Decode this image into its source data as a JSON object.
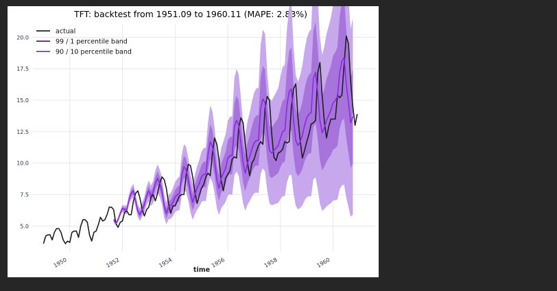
{
  "chart_data": {
    "type": "line",
    "title": "TFT: backtest from 1951.09 to 1960.11  (MAPE: 2.83%)",
    "xlabel": "time",
    "ylabel": "",
    "xlim": [
      1948.6,
      1961.6
    ],
    "ylim": [
      3.0,
      21.0
    ],
    "x_ticks": [
      1950,
      1952,
      1954,
      1956,
      1958,
      1960
    ],
    "y_ticks": [
      5.0,
      7.5,
      10.0,
      12.5,
      15.0,
      17.5,
      20.0
    ],
    "grid": true,
    "legend_position": "top-left",
    "colors": {
      "actual": "#1f1f1f",
      "band_99_1": "#5a1a7a",
      "band_90_10": "#8a2be2",
      "band_fill_outer": "#c7a8ec",
      "band_fill_inner": "#a774dc"
    },
    "series": [
      {
        "name": "actual",
        "x_start": 1949.0,
        "step": 0.083333,
        "values": [
          3.6,
          4.2,
          4.3,
          4.3,
          3.9,
          4.5,
          4.8,
          4.8,
          4.5,
          3.9,
          3.6,
          3.8,
          3.7,
          4.5,
          4.6,
          4.6,
          4.1,
          5.0,
          5.5,
          5.5,
          5.3,
          4.3,
          3.8,
          4.5,
          4.6,
          5.1,
          5.7,
          5.4,
          5.5,
          5.9,
          6.5,
          6.5,
          6.3,
          5.2,
          4.9,
          5.3,
          5.4,
          6.1,
          6.2,
          5.9,
          5.9,
          7.0,
          7.6,
          7.8,
          7.2,
          6.3,
          5.8,
          6.3,
          6.5,
          7.3,
          7.5,
          7.0,
          7.6,
          8.4,
          8.9,
          8.7,
          8.0,
          6.8,
          6.0,
          6.6,
          6.6,
          7.0,
          7.4,
          7.5,
          7.5,
          9.0,
          9.9,
          9.8,
          8.9,
          7.7,
          6.8,
          7.4,
          8.0,
          8.3,
          8.9,
          9.2,
          9.0,
          10.8,
          12.0,
          11.5,
          10.3,
          8.6,
          7.8,
          8.8,
          9.1,
          9.4,
          10.3,
          10.5,
          10.4,
          12.8,
          13.6,
          13.2,
          11.5,
          10.0,
          9.0,
          10.0,
          10.3,
          10.9,
          11.4,
          11.7,
          11.5,
          14.4,
          15.3,
          15.0,
          12.4,
          10.5,
          10.2,
          10.8,
          10.9,
          11.1,
          11.7,
          11.6,
          11.7,
          14.5,
          15.9,
          16.3,
          13.6,
          11.8,
          10.4,
          11.0,
          11.7,
          12.3,
          13.1,
          13.2,
          13.4,
          17.2,
          18.0,
          15.4,
          13.3,
          12.0,
          12.9,
          13.5,
          13.5,
          13.5,
          15.4,
          15.2,
          15.4,
          17.8,
          20.1,
          19.5,
          16.5,
          14.5,
          13.0,
          13.9
        ]
      },
      {
        "name": "99 / 1 percentile band",
        "x_start": 1951.667,
        "step": 0.083333,
        "median": [
          5.5,
          5.2,
          5.5,
          6.0,
          6.4,
          6.3,
          6.3,
          7.1,
          7.6,
          7.8,
          7.0,
          6.2,
          5.9,
          6.3,
          6.7,
          7.4,
          7.8,
          7.4,
          7.7,
          8.4,
          8.8,
          8.4,
          7.8,
          6.6,
          6.0,
          6.5,
          6.6,
          6.9,
          7.3,
          7.5,
          7.6,
          9.0,
          9.7,
          9.5,
          8.7,
          7.6,
          6.9,
          7.5,
          8.0,
          8.4,
          8.9,
          9.1,
          9.1,
          10.7,
          11.7,
          11.3,
          10.2,
          8.7,
          8.0,
          8.8,
          9.2,
          9.6,
          10.4,
          10.6,
          10.6,
          12.9,
          13.4,
          13.0,
          11.5,
          10.0,
          9.2,
          10.0,
          10.5,
          11.1,
          11.6,
          11.8,
          11.8,
          14.3,
          15.1,
          14.8,
          12.5,
          11.0,
          10.8,
          11.0,
          11.2,
          11.4,
          12.0,
          12.5,
          12.6,
          14.6,
          15.7,
          15.9,
          13.4,
          11.8,
          11.4,
          11.7,
          12.2,
          13.0,
          13.6,
          13.9,
          14.0,
          16.7,
          17.2,
          15.6,
          13.4,
          12.4,
          12.8,
          13.4,
          13.8,
          14.2,
          14.8,
          15.0,
          15.3,
          17.2,
          18.1,
          18.4,
          16.3,
          14.8,
          13.2,
          13.7
        ]
      },
      {
        "name": "90 / 10 percentile band"
      }
    ]
  }
}
